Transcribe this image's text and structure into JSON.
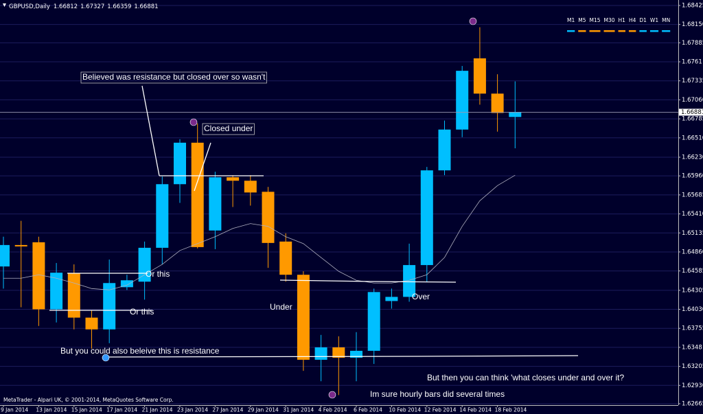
{
  "chart_data": {
    "type": "candlestick",
    "title": "GBPUSD,Daily",
    "categories": [
      "9 Jan 2014",
      null,
      "13 Jan 2014",
      null,
      "15 Jan 2014",
      null,
      "17 Jan 2014",
      null,
      "21 Jan 2014",
      null,
      "23 Jan 2014",
      null,
      "27 Jan 2014",
      null,
      "29 Jan 2014",
      null,
      "31 Jan 2014",
      null,
      "4 Feb 2014",
      null,
      "6 Feb 2014",
      null,
      "10 Feb 2014",
      null,
      "12 Feb 2014",
      null,
      "14 Feb 2014",
      null,
      "18 Feb 2014",
      null
    ],
    "open": [
      1.6465,
      1.6496,
      1.65,
      1.6403,
      1.6455,
      1.6391,
      1.6374,
      1.6435,
      1.6443,
      1.6492,
      1.6584,
      1.6644,
      1.6517,
      1.6594,
      1.6589,
      1.6573,
      1.6501,
      1.6453,
      1.633,
      1.6348,
      1.6333,
      1.6343,
      1.6415,
      1.6421,
      1.6467,
      1.6604,
      1.6663,
      1.6766,
      1.6715,
      1.66812
    ],
    "high": [
      1.6508,
      1.6531,
      1.6508,
      1.647,
      1.6468,
      1.6401,
      1.6475,
      1.6453,
      1.6501,
      1.6595,
      1.6649,
      1.6672,
      1.6602,
      1.6597,
      1.6597,
      1.658,
      1.6513,
      1.6458,
      1.6366,
      1.6364,
      1.637,
      1.6433,
      1.6433,
      1.6498,
      1.6609,
      1.6676,
      1.6755,
      1.6811,
      1.6743,
      1.67327
    ],
    "low": [
      1.6433,
      1.6406,
      1.6379,
      1.6384,
      1.6374,
      1.6346,
      1.6354,
      1.6431,
      1.6417,
      1.6468,
      1.6557,
      1.6491,
      1.649,
      1.6551,
      1.6553,
      1.6463,
      1.6443,
      1.6314,
      1.6299,
      1.6279,
      1.6299,
      1.6324,
      1.6404,
      1.6414,
      1.6443,
      1.6597,
      1.6652,
      1.6699,
      1.666,
      1.66359
    ],
    "close": [
      1.6496,
      1.6494,
      1.6403,
      1.6456,
      1.6391,
      1.6374,
      1.6441,
      1.6445,
      1.6492,
      1.6584,
      1.6644,
      1.6493,
      1.6594,
      1.6589,
      1.6572,
      1.6499,
      1.6453,
      1.633,
      1.6348,
      1.6333,
      1.6343,
      1.6428,
      1.6421,
      1.6467,
      1.6604,
      1.6663,
      1.6748,
      1.6715,
      1.6687,
      1.66881
    ],
    "up_color": "#00bfff",
    "down_color": "#ff9900",
    "moving_average": {
      "color": "#b0b0c0",
      "values": [
        1.6448,
        1.6448,
        1.6453,
        1.6448,
        1.6441,
        1.6433,
        1.6431,
        1.6438,
        1.6453,
        1.6468,
        1.6488,
        1.6498,
        1.6508,
        1.652,
        1.6527,
        1.6523,
        1.6508,
        1.6498,
        1.6478,
        1.6458,
        1.6445,
        1.6441,
        1.6441,
        1.6445,
        1.6453,
        1.6478,
        1.6523,
        1.656,
        1.6582,
        1.6597
      ]
    },
    "ylim": [
      1.62645,
      1.68504
    ],
    "yticks": [
      1.68425,
      {
        "value": 1.6815,
        "label": "1.68150"
      },
      1.67885,
      1.6761,
      1.67335,
      {
        "value": 1.6706,
        "label": "1.67060"
      },
      1.66785,
      {
        "value": 1.6651,
        "label": "1.66510"
      },
      {
        "value": 1.6623,
        "label": "1.66230"
      },
      {
        "value": 1.6596,
        "label": "1.65960"
      },
      1.65685,
      {
        "value": 1.6541,
        "label": "1.65410"
      },
      1.65135,
      {
        "value": 1.6486,
        "label": "1.64860"
      },
      1.64585,
      1.64305,
      {
        "value": 1.6403,
        "label": "1.64030"
      },
      1.63755,
      1.6348,
      1.63205,
      {
        "value": 1.6293,
        "label": "1.62930"
      },
      1.62665
    ],
    "grid": true,
    "annotations": [
      "Believed was resistance but closed over so wasn't",
      "Closed under",
      "Or this",
      "Or this",
      "Under",
      "Over",
      "But you could also beleive this is resistance",
      "But then you can think 'what closes under and over it?",
      "Im sure hourly bars did several times"
    ],
    "timeframes": [
      "M1",
      "M5",
      "M15",
      "M30",
      "H1",
      "H4",
      "D1",
      "W1",
      "MN"
    ],
    "copyright": "MetaTrader - Alpari UK, © 2001-2014, MetaQuotes Software Corp."
  }
}
